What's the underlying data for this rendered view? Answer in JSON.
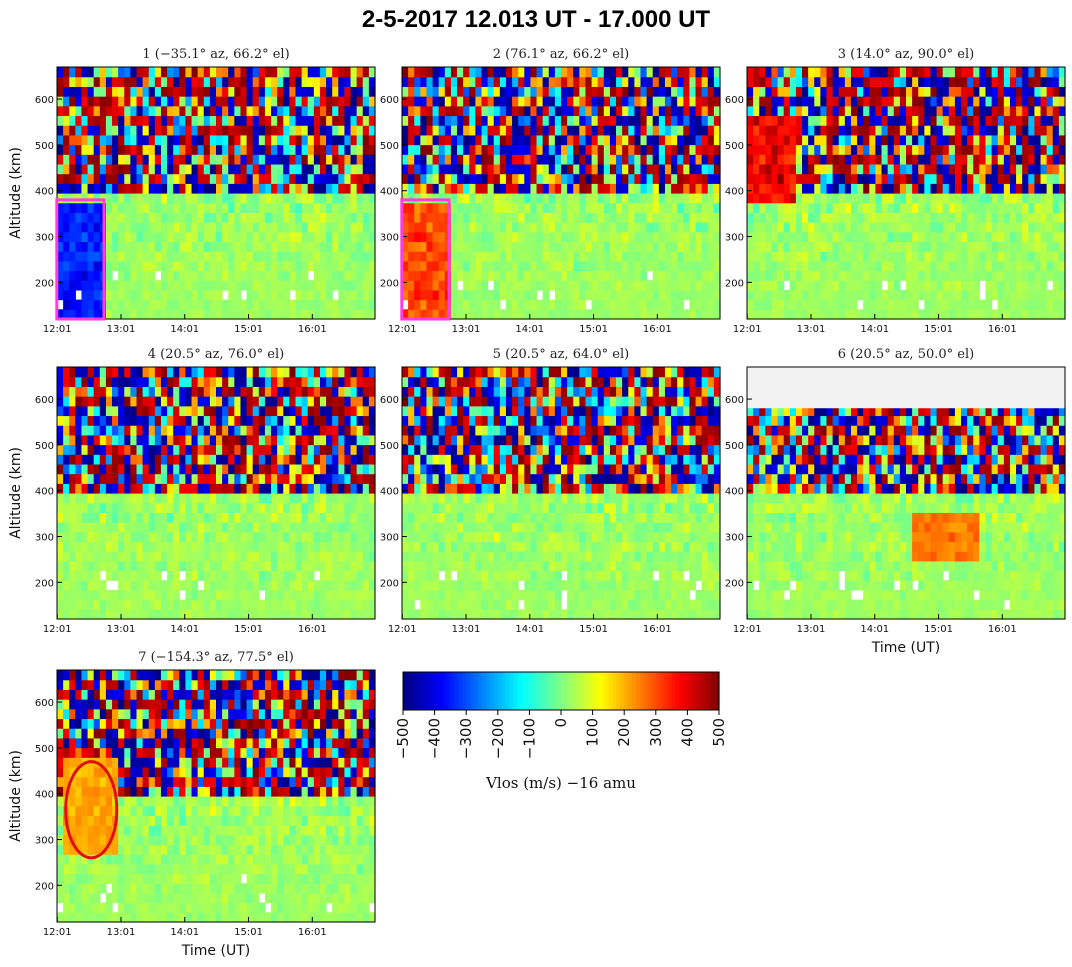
{
  "chart_data": {
    "type": "heatmap",
    "title": "2-5-2017 12.013 UT - 17.000 UT",
    "ylabel": "Altitude (km)",
    "xlabel": "Time (UT)",
    "time_range_ut": [
      12.013,
      17.0
    ],
    "ylim": [
      120,
      670
    ],
    "yticks": [
      "200",
      "300",
      "400",
      "500",
      "600"
    ],
    "xticks": [
      "12:01",
      "13:01",
      "14:01",
      "15:01",
      "16:01"
    ],
    "colorbar": {
      "label": "Vlos (m/s)  −16 amu",
      "ticks": [
        "−500",
        "−400",
        "−300",
        "−200",
        "−100",
        "0",
        "100",
        "200",
        "300",
        "400",
        "500"
      ],
      "range": [
        -500,
        500
      ],
      "colormap": "jet"
    },
    "panels": [
      {
        "id": 1,
        "title": "1 (−35.1° az, 66.2° el)",
        "az": -35.1,
        "el": 66.2,
        "bias_feature": "negative (blue) velocities below ~380 km, 12:01-12:45 UT",
        "highlight": {
          "shape": "rectangle",
          "color": "#ff3ce0",
          "time_ut": [
            12.01,
            12.75
          ],
          "alt_km": [
            120,
            380
          ]
        }
      },
      {
        "id": 2,
        "title": "2 (76.1° az, 66.2° el)",
        "az": 76.1,
        "el": 66.2,
        "bias_feature": "positive (red/orange) velocities below ~380 km, 12:01-12:45 UT",
        "highlight": {
          "shape": "rectangle",
          "color": "#ff3ce0",
          "time_ut": [
            12.01,
            12.75
          ],
          "alt_km": [
            120,
            380
          ]
        }
      },
      {
        "id": 3,
        "title": "3 (14.0° az, 90.0° el)",
        "az": 14.0,
        "el": 90.0,
        "bias_feature": "red velocities 380-560 km near 12:01-12:45 UT"
      },
      {
        "id": 4,
        "title": "4 (20.5° az, 76.0° el)",
        "az": 20.5,
        "el": 76.0
      },
      {
        "id": 5,
        "title": "5 (20.5° az, 64.0° el)",
        "az": 20.5,
        "el": 64.0
      },
      {
        "id": 6,
        "title": "6 (20.5° az, 50.0° el)",
        "az": 20.5,
        "el": 50.0,
        "bias_feature": "orange velocities 250-350 km near 14:40-15:40 UT; no data above ~580 km"
      },
      {
        "id": 7,
        "title": "7 (−154.3° az, 77.5° el)",
        "az": -154.3,
        "el": 77.5,
        "bias_feature": "yellow/orange velocities 260-460 km near 12:10-12:55 UT",
        "highlight": {
          "shape": "ellipse",
          "color": "#e01010",
          "time_ut": [
            12.15,
            12.95
          ],
          "alt_km": [
            260,
            470
          ]
        }
      }
    ]
  }
}
